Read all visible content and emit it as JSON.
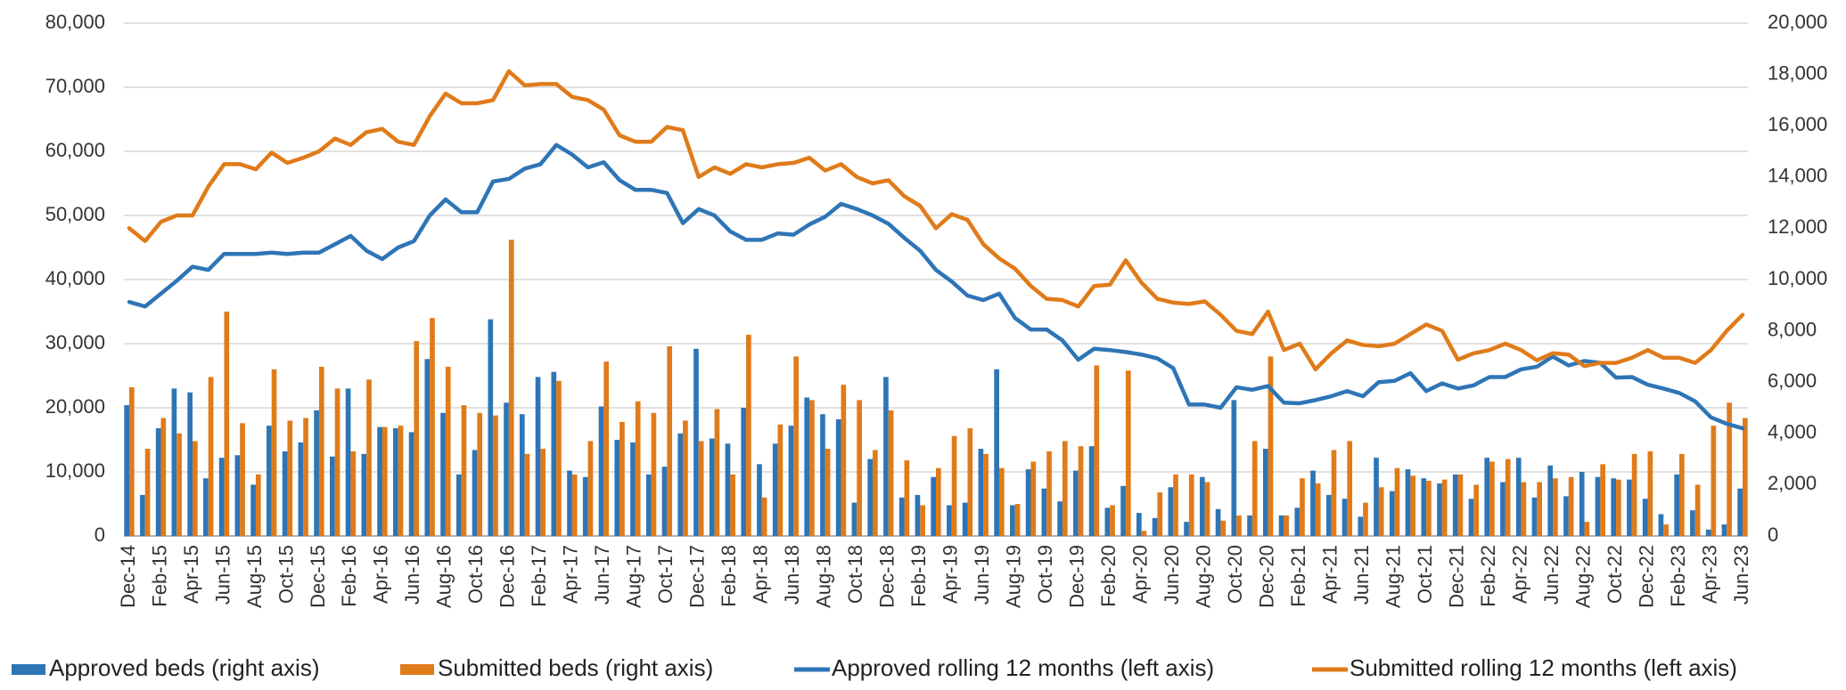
{
  "chart_data": {
    "type": "combo",
    "categories": [
      "Dec-14",
      null,
      "Feb-15",
      null,
      "Apr-15",
      null,
      "Jun-15",
      null,
      "Aug-15",
      null,
      "Oct-15",
      null,
      "Dec-15",
      null,
      "Feb-16",
      null,
      "Apr-16",
      null,
      "Jun-16",
      null,
      "Aug-16",
      null,
      "Oct-16",
      null,
      "Dec-16",
      null,
      "Feb-17",
      null,
      "Apr-17",
      null,
      "Jun-17",
      null,
      "Aug-17",
      null,
      "Oct-17",
      null,
      "Dec-17",
      null,
      "Feb-18",
      null,
      "Apr-18",
      null,
      "Jun-18",
      null,
      "Aug-18",
      null,
      "Oct-18",
      null,
      "Dec-18",
      null,
      "Feb-19",
      null,
      "Apr-19",
      null,
      "Jun-19",
      null,
      "Aug-19",
      null,
      "Oct-19",
      null,
      "Dec-19",
      null,
      "Feb-20",
      null,
      "Apr-20",
      null,
      "Jun-20",
      null,
      "Aug-20",
      null,
      "Oct-20",
      null,
      "Dec-20",
      null,
      "Feb-21",
      null,
      "Apr-21",
      null,
      "Jun-21",
      null,
      "Aug-21",
      null,
      "Oct-21",
      null,
      "Dec-21",
      null,
      "Feb-22",
      null,
      "Apr-22",
      null,
      "Jun-22",
      null,
      "Aug-22",
      null,
      "Oct-22",
      null,
      "Dec-22",
      null,
      "Feb-23",
      null,
      "Apr-23",
      null,
      "Jun-23"
    ],
    "ylim": [
      0,
      80000
    ],
    "yticks": [
      0,
      {
        "value": 10000,
        "label": "10,000"
      },
      {
        "value": 20000,
        "label": "20,000"
      },
      {
        "value": 30000,
        "label": "30,000"
      },
      {
        "value": 40000,
        "label": "40,000"
      },
      {
        "value": 50000,
        "label": "50,000"
      },
      {
        "value": 60000,
        "label": "60,000"
      },
      {
        "value": 70000,
        "label": "70,000"
      },
      {
        "value": 80000,
        "label": "80,000"
      }
    ],
    "y2lim": [
      0,
      20000
    ],
    "y2ticks": [
      0,
      {
        "value": 2000,
        "label": "2,000"
      },
      {
        "value": 4000,
        "label": "4,000"
      },
      {
        "value": 6000,
        "label": "6,000"
      },
      {
        "value": 8000,
        "label": "8,000"
      },
      {
        "value": 10000,
        "label": "10,000"
      },
      {
        "value": 12000,
        "label": "12,000"
      },
      {
        "value": 14000,
        "label": "14,000"
      },
      {
        "value": 16000,
        "label": "16,000"
      },
      {
        "value": 18000,
        "label": "18,000"
      },
      {
        "value": 20000,
        "label": "20,000"
      }
    ],
    "grid": true,
    "legend": "bottom",
    "series": [
      {
        "name": "Approved beds (right axis)",
        "type": "bar",
        "axis": "y2",
        "color": "#2e75b6",
        "values": [
          5100,
          1600,
          4200,
          5750,
          5600,
          2250,
          3050,
          3150,
          2000,
          4300,
          3300,
          3650,
          4900,
          3100,
          5750,
          3200,
          4250,
          4200,
          4050,
          6900,
          4800,
          2400,
          3350,
          8450,
          5200,
          4750,
          6200,
          6400,
          2550,
          2300,
          5050,
          3750,
          3650,
          2400,
          2700,
          4000,
          7300,
          3800,
          3600,
          5000,
          2800,
          3600,
          4300,
          5400,
          4750,
          4550,
          1300,
          3000,
          6200,
          1500,
          1600,
          2300,
          1200,
          1300,
          3400,
          6500,
          1200,
          2600,
          1850,
          1350,
          2550,
          3500,
          1100,
          1950,
          900,
          700,
          1900,
          550,
          2300,
          1050,
          5300,
          800,
          3400,
          800,
          1100,
          2550,
          1600,
          1450,
          750,
          3050,
          1750,
          2600,
          2250,
          2050,
          2400,
          1450,
          3050,
          2100,
          3050,
          1500,
          2750,
          1550,
          2500,
          2300,
          2250,
          2200,
          1450,
          850,
          2400,
          1000,
          250,
          450,
          1850
        ]
      },
      {
        "name": "Submitted beds (right axis)",
        "type": "bar",
        "axis": "y2",
        "color": "#e07b1a",
        "values": [
          5800,
          3400,
          4600,
          4000,
          3700,
          6200,
          8750,
          4400,
          2400,
          6500,
          4500,
          4600,
          6600,
          5750,
          3300,
          6100,
          4250,
          4300,
          7600,
          8500,
          6600,
          5100,
          4800,
          4700,
          11550,
          3200,
          3400,
          6050,
          2400,
          3700,
          6800,
          4450,
          5250,
          4800,
          7400,
          4500,
          3700,
          4950,
          2400,
          7850,
          1500,
          4350,
          7000,
          5300,
          3400,
          5900,
          5300,
          3350,
          4900,
          2950,
          1200,
          2650,
          3900,
          4200,
          3200,
          2650,
          1250,
          2900,
          3300,
          3700,
          3500,
          6650,
          1200,
          6450,
          200,
          1700,
          2400,
          2400,
          2100,
          600,
          800,
          3700,
          7000,
          800,
          2250,
          2050,
          3350,
          3700,
          1300,
          1900,
          2650,
          2350,
          2150,
          2200,
          2400,
          2000,
          2900,
          3000,
          2100,
          2100,
          2250,
          2300,
          550,
          2800,
          2200,
          3200,
          3300,
          450,
          3200,
          2000,
          4300,
          5200,
          4600
        ]
      },
      {
        "name": "Approved rolling 12 months (left axis)",
        "type": "line",
        "axis": "y",
        "color": "#2e75b6",
        "values": [
          36500,
          35800,
          37800,
          39800,
          42000,
          41500,
          44000,
          44000,
          44000,
          44200,
          44000,
          44200,
          44200,
          45500,
          46800,
          44500,
          43200,
          45000,
          46000,
          50000,
          52500,
          50500,
          50500,
          55300,
          55700,
          57300,
          58000,
          61000,
          59500,
          57500,
          58300,
          55500,
          54000,
          54000,
          53500,
          48800,
          51000,
          50000,
          47500,
          46200,
          46200,
          47200,
          47000,
          48600,
          49800,
          51800,
          51000,
          50000,
          48700,
          46500,
          44500,
          41500,
          39700,
          37500,
          36800,
          37800,
          34000,
          32200,
          32200,
          30500,
          27500,
          29200,
          29000,
          28700,
          28300,
          27700,
          26200,
          20500,
          20500,
          20000,
          23200,
          22800,
          23400,
          20800,
          20700,
          21200,
          21800,
          22600,
          21800,
          24000,
          24200,
          25400,
          22600,
          23800,
          23000,
          23500,
          24800,
          24800,
          26000,
          26400,
          28000,
          26600,
          27300,
          27000,
          24700,
          24800,
          23600,
          23000,
          22300,
          21000,
          18500,
          17500,
          16800
        ]
      },
      {
        "name": "Submitted rolling 12 months (left axis)",
        "type": "line",
        "axis": "y",
        "color": "#e07b1a",
        "values": [
          48000,
          46000,
          49000,
          50000,
          50000,
          54500,
          58000,
          58000,
          57200,
          59800,
          58200,
          59000,
          60000,
          62000,
          61000,
          63000,
          63500,
          61500,
          61000,
          65500,
          69000,
          67500,
          67500,
          68000,
          72500,
          70300,
          70500,
          70500,
          68500,
          68000,
          66500,
          62500,
          61500,
          61500,
          63800,
          63300,
          56000,
          57500,
          56500,
          58000,
          57500,
          58000,
          58200,
          59000,
          57000,
          58000,
          56000,
          55000,
          55500,
          53000,
          51500,
          48000,
          50200,
          49300,
          45500,
          43300,
          41700,
          39000,
          37000,
          36800,
          35800,
          39000,
          39200,
          43000,
          39500,
          37000,
          36400,
          36200,
          36600,
          34500,
          32000,
          31500,
          35000,
          29000,
          30000,
          26000,
          28500,
          30500,
          29800,
          29600,
          30000,
          31500,
          33000,
          32000,
          27500,
          28500,
          29000,
          30000,
          29000,
          27400,
          28500,
          28300,
          26500,
          27000,
          27000,
          27800,
          29000,
          27800,
          27800,
          27000,
          29000,
          32000,
          34500
        ]
      }
    ]
  }
}
